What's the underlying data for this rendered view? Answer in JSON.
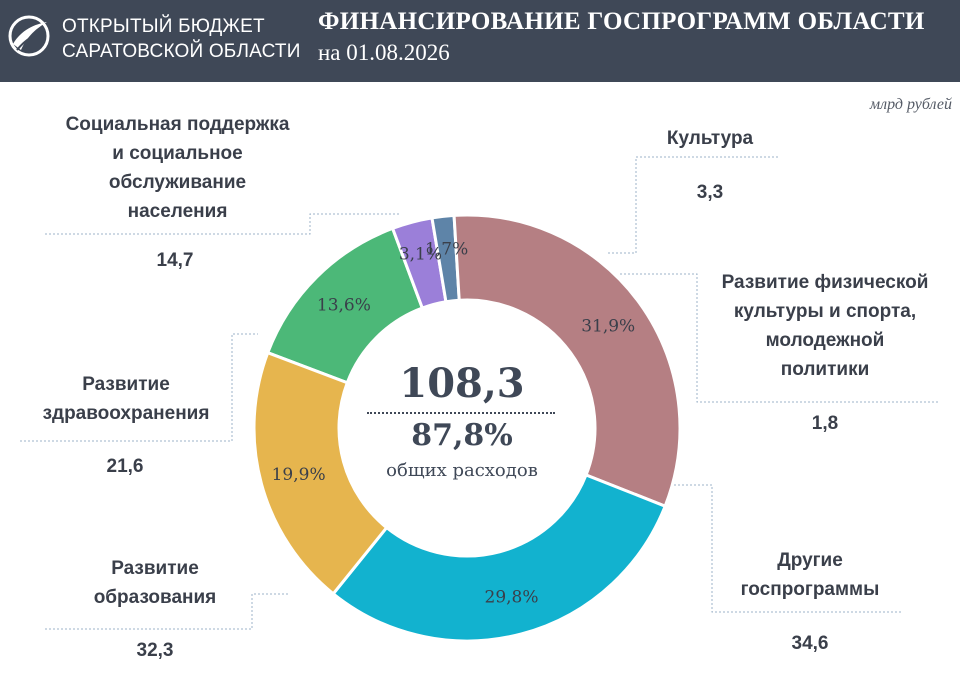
{
  "header": {
    "org_line1": "ОТКРЫТЫЙ БЮДЖЕТ",
    "org_line2": "САРАТОВСКОЙ ОБЛАСТИ",
    "title": "ФИНАНСИРОВАНИЕ ГОСПРОГРАММ ОБЛАСТИ",
    "subtitle": "на 01.08.2026"
  },
  "unit": "млрд рублей",
  "center": {
    "total": "108,3",
    "share": "87,8%",
    "caption": "общих расходов"
  },
  "colors": {
    "header_bg": "#3f4857",
    "social": "#4cb878",
    "culture": "#9b7fd9",
    "sport": "#5e84a8",
    "other": "#b57f83",
    "education": "#12b2cf",
    "health": "#e6b54e"
  },
  "chart_data": {
    "type": "pie",
    "donut": true,
    "total": 108.3,
    "share_of_total_expenses": 87.8,
    "slices": [
      {
        "key": "social",
        "name": "Социальная поддержка\nи социальное\nобслуживание\nнаселения",
        "value": 14.7,
        "value_label": "14,7",
        "percent": 13.6,
        "percent_label": "13,6%"
      },
      {
        "key": "culture",
        "name": "Культура",
        "value": 3.3,
        "value_label": "3,3",
        "percent": 3.1,
        "percent_label": "3,1%"
      },
      {
        "key": "sport",
        "name": "Развитие физической\nкультуры и спорта,\nмолодежной\nполитики",
        "value": 1.8,
        "value_label": "1,8",
        "percent": 1.7,
        "percent_label": "1,7%"
      },
      {
        "key": "other",
        "name": "Другие\nгоспрограммы",
        "value": 34.6,
        "value_label": "34,6",
        "percent": 31.9,
        "percent_label": "31,9%"
      },
      {
        "key": "education",
        "name": "Развитие\nобразования",
        "value": 32.3,
        "value_label": "32,3",
        "percent": 29.8,
        "percent_label": "29,8%"
      },
      {
        "key": "health",
        "name": "Развитие\nздравоохранения",
        "value": 21.6,
        "value_label": "21,6",
        "percent": 19.9,
        "percent_label": "19,9%"
      }
    ]
  }
}
